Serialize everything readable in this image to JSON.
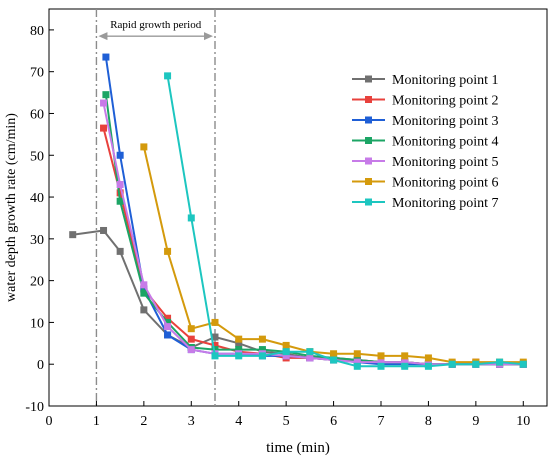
{
  "chart_data": {
    "type": "line",
    "xlabel": "time (min)",
    "ylabel": "water depth growth rate (cm/min)",
    "xlim": [
      0,
      10.5
    ],
    "ylim": [
      -10,
      85
    ],
    "xticks": [
      0,
      1,
      2,
      3,
      4,
      5,
      6,
      7,
      8,
      9,
      10
    ],
    "yticks": [
      -10,
      0,
      10,
      20,
      30,
      40,
      50,
      60,
      70,
      80
    ],
    "grid": false,
    "legend_position": "right",
    "annotation": {
      "text": "Rapid growth period",
      "start": 1,
      "end": 3.5,
      "arrow_y": 78.5
    },
    "series": [
      {
        "name": "Monitoring point 1",
        "color": "#707070",
        "x": [
          0.5,
          1.15,
          1.5,
          2,
          2.5,
          3,
          3.5,
          4,
          4.5,
          5,
          5.5,
          6,
          6.5,
          7,
          7.5,
          8,
          8.5,
          9,
          9.5,
          10
        ],
        "y": [
          31,
          32,
          27,
          13,
          7,
          4,
          6.5,
          5,
          3,
          2.5,
          1.5,
          1.5,
          1,
          0.5,
          0.5,
          0,
          0,
          0,
          0,
          0
        ]
      },
      {
        "name": "Monitoring point 2",
        "color": "#e8413c",
        "x": [
          1.15,
          1.5,
          2,
          2.5,
          3,
          3.5,
          4,
          4.5,
          5,
          5.5,
          6,
          6.5,
          7,
          7.5,
          8,
          8.5,
          9,
          9.5,
          10
        ],
        "y": [
          56.5,
          41,
          18,
          11,
          6,
          4.5,
          3,
          2.5,
          1.5,
          1.5,
          1,
          1,
          0.5,
          0.5,
          0,
          0,
          0.5,
          0,
          0
        ]
      },
      {
        "name": "Monitoring point 3",
        "color": "#1f5fd6",
        "x": [
          1.2,
          1.5,
          2,
          2.5,
          3,
          3.5,
          4,
          4.5,
          5,
          5.5,
          6,
          6.5,
          7,
          7.5,
          8,
          8.5,
          9,
          9.5,
          10
        ],
        "y": [
          73.5,
          50,
          18,
          7,
          3.5,
          2.5,
          2.5,
          2,
          2,
          1.5,
          1,
          0.5,
          0,
          0,
          0,
          0,
          0,
          0,
          0
        ]
      },
      {
        "name": "Monitoring point 4",
        "color": "#1ca565",
        "x": [
          1.2,
          1.5,
          2,
          2.5,
          3,
          3.5,
          4,
          4.5,
          5,
          5.5,
          6,
          6.5,
          7,
          7.5,
          8,
          8.5,
          9,
          9.5,
          10
        ],
        "y": [
          64.5,
          39,
          17,
          10,
          4,
          3.5,
          3.5,
          3.5,
          3,
          2,
          1.5,
          1,
          0.5,
          0.5,
          0,
          0,
          0,
          0,
          0
        ]
      },
      {
        "name": "Monitoring point 5",
        "color": "#c77be8",
        "x": [
          1.15,
          1.5,
          2,
          2.5,
          3,
          3.5,
          4,
          4.5,
          5,
          5.5,
          6,
          6.5,
          7,
          7.5,
          8,
          8.5,
          9,
          9.5,
          10
        ],
        "y": [
          62.5,
          43,
          19,
          9,
          3.5,
          2.5,
          2.5,
          2.5,
          2,
          1.5,
          1,
          0.5,
          0.5,
          0.5,
          0,
          0,
          0,
          0,
          0
        ]
      },
      {
        "name": "Monitoring point 6",
        "color": "#d49a0c",
        "x": [
          2,
          2.5,
          3,
          3.5,
          4,
          4.5,
          5,
          5.5,
          6,
          6.5,
          7,
          7.5,
          8,
          8.5,
          9,
          9.5,
          10
        ],
        "y": [
          52,
          27,
          8.5,
          10,
          6,
          6,
          4.5,
          3,
          2.5,
          2.5,
          2,
          2,
          1.5,
          0.5,
          0.5,
          0.5,
          0.5
        ]
      },
      {
        "name": "Monitoring point 7",
        "color": "#1dc6c0",
        "x": [
          2.5,
          3,
          3.5,
          4,
          4.5,
          5,
          5.5,
          6,
          6.5,
          7,
          7.5,
          8,
          8.5,
          9,
          9.5,
          10
        ],
        "y": [
          69,
          35,
          2,
          2,
          2,
          3,
          3,
          1,
          -0.5,
          -0.5,
          -0.5,
          -0.5,
          0,
          0,
          0.5,
          0
        ]
      }
    ]
  }
}
